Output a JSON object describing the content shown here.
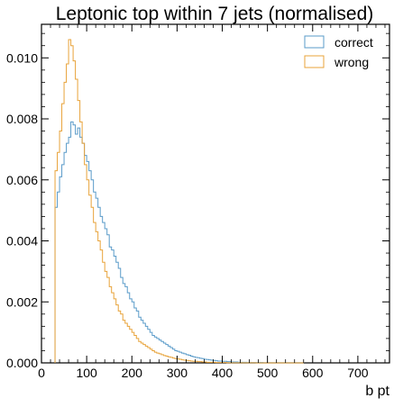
{
  "chart_data": {
    "type": "step-histogram",
    "title": "Leptonic top within 7 jets (normalised)",
    "xlabel": "b pt",
    "ylabel": "",
    "xlim": [
      0,
      770
    ],
    "ylim": [
      0,
      0.0111
    ],
    "xticks": [
      0,
      100,
      200,
      300,
      400,
      500,
      600,
      700
    ],
    "xtick_labels": [
      "0",
      "100",
      "200",
      "300",
      "400",
      "500",
      "600",
      "700"
    ],
    "yticks": [
      0.0,
      0.002,
      0.004,
      0.006,
      0.008,
      0.01
    ],
    "ytick_labels": [
      "0.000",
      "0.002",
      "0.004",
      "0.006",
      "0.008",
      "0.010"
    ],
    "bin_edges_start": 30,
    "bin_width": 5,
    "legend_position": "top-right",
    "series": [
      {
        "name": "correct",
        "color": "#5a9bc9",
        "values": [
          0.0051,
          0.0056,
          0.0061,
          0.0065,
          0.0069,
          0.0072,
          0.0074,
          0.0079,
          0.0078,
          0.0075,
          0.0077,
          0.0074,
          0.0072,
          0.0068,
          0.0066,
          0.0063,
          0.006,
          0.0056,
          0.0054,
          0.0051,
          0.0048,
          0.0046,
          0.0044,
          0.0042,
          0.0038,
          0.0037,
          0.0035,
          0.0033,
          0.0031,
          0.0028,
          0.0026,
          0.0025,
          0.0023,
          0.0021,
          0.002,
          0.0018,
          0.0017,
          0.0015,
          0.0014,
          0.0013,
          0.0012,
          0.0011,
          0.001,
          0.0009,
          0.00085,
          0.0008,
          0.00075,
          0.0007,
          0.00065,
          0.0006,
          0.00055,
          0.0005,
          0.00045,
          0.0004,
          0.00038,
          0.00035,
          0.00032,
          0.0003,
          0.00027,
          0.00025,
          0.00022,
          0.0002,
          0.00018,
          0.00017,
          0.00015,
          0.00014,
          0.00012,
          0.00011,
          0.0001,
          9e-05,
          8e-05,
          7e-05,
          6e-05,
          6e-05,
          5e-05,
          5e-05,
          4e-05,
          4e-05,
          3e-05,
          3e-05,
          3e-05,
          2e-05,
          2e-05,
          2e-05,
          2e-05,
          1e-05,
          1e-05,
          1e-05,
          1e-05,
          1e-05,
          1e-05,
          1e-05,
          5e-06,
          5e-06,
          5e-06,
          5e-06,
          5e-06,
          5e-06,
          5e-06,
          3e-06,
          3e-06,
          3e-06,
          3e-06,
          3e-06,
          2e-06,
          2e-06,
          2e-06,
          2e-06,
          2e-06,
          1e-06
        ]
      },
      {
        "name": "wrong",
        "color": "#e8a33a",
        "values": [
          0.0063,
          0.0069,
          0.0076,
          0.0085,
          0.0092,
          0.0098,
          0.0106,
          0.0104,
          0.0099,
          0.0093,
          0.0086,
          0.0079,
          0.0072,
          0.0065,
          0.006,
          0.0055,
          0.0051,
          0.0046,
          0.0043,
          0.004,
          0.0037,
          0.0033,
          0.003,
          0.0028,
          0.0025,
          0.0023,
          0.0021,
          0.0019,
          0.0017,
          0.0016,
          0.0014,
          0.0013,
          0.0012,
          0.0011,
          0.001,
          0.0009,
          0.0008,
          0.0007,
          0.00065,
          0.0006,
          0.00055,
          0.0005,
          0.00045,
          0.0004,
          0.00035,
          0.00032,
          0.0003,
          0.00027,
          0.00024,
          0.00022,
          0.0002,
          0.00018,
          0.00016,
          0.00014,
          0.00013,
          0.00012,
          0.0001,
          9e-05,
          8e-05,
          7e-05,
          6e-05,
          5e-05,
          5e-05,
          4e-05,
          4e-05,
          3e-05,
          3e-05,
          2e-05,
          2e-05,
          2e-05,
          2e-05,
          1e-05,
          1e-05,
          1e-05,
          1e-05,
          1e-05,
          5e-06,
          5e-06,
          5e-06,
          5e-06,
          5e-06,
          3e-06,
          3e-06,
          3e-06,
          3e-06,
          2e-06,
          2e-06,
          2e-06,
          2e-06,
          1e-06,
          1e-06,
          1e-06,
          1e-06,
          1e-06,
          1e-06,
          1e-06,
          1e-06,
          1e-06,
          1e-06,
          1e-06,
          1e-06,
          1e-06,
          1e-06,
          1e-06,
          1e-06,
          1e-06,
          1e-06,
          1e-06,
          1e-06,
          1e-06
        ]
      }
    ]
  }
}
